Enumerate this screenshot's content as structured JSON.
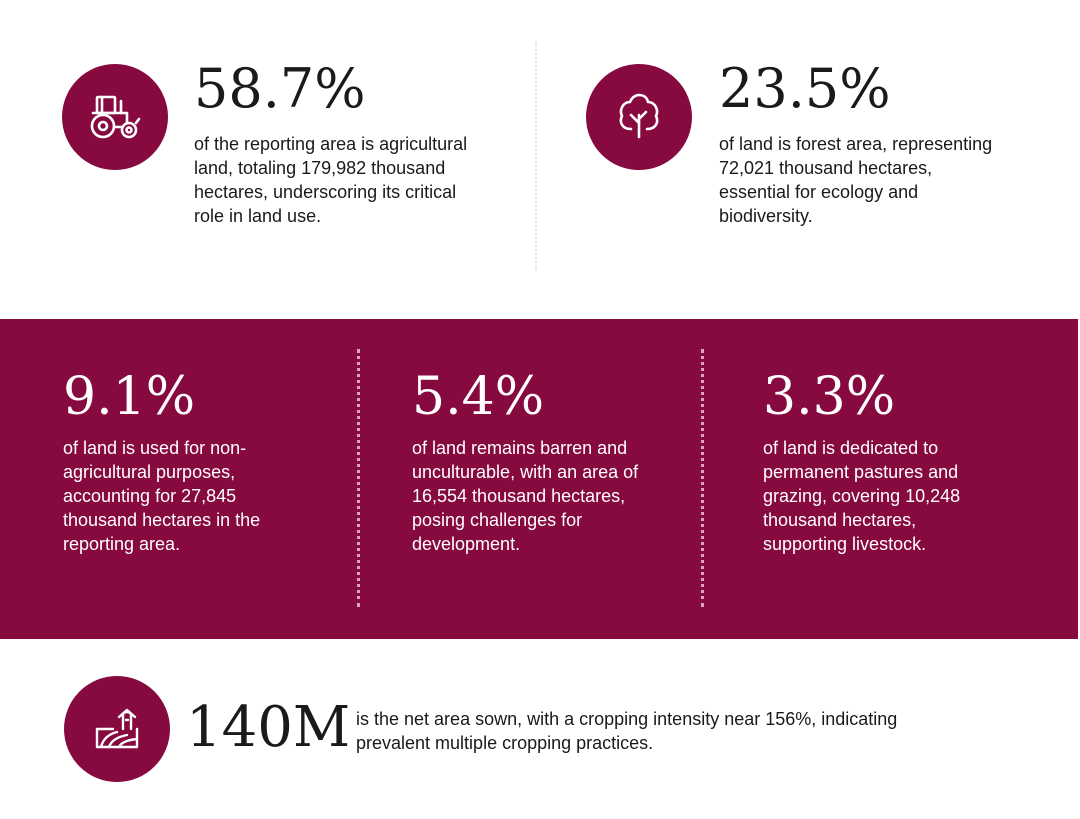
{
  "top_stats": [
    {
      "value": "58.7%",
      "text": "of the reporting area is agricultural land, totaling 179,982 thousand hectares, underscoring its critical role in land use.",
      "icon": "tractor-icon"
    },
    {
      "value": "23.5%",
      "text": "of land is forest area, representing 72,021 thousand hectares, essential for ecology and biodiversity.",
      "icon": "tree-icon"
    }
  ],
  "band_stats": [
    {
      "value": "9.1%",
      "text": "of land is used for non-agricultural purposes, accounting for 27,845 thousand hectares in the reporting area."
    },
    {
      "value": "5.4%",
      "text": "of land remains barren and unculturable, with an area of 16,554 thousand hectares, posing challenges for development."
    },
    {
      "value": "3.3%",
      "text": "of land is dedicated to permanent pastures and grazing, covering 10,248 thousand hectares, supporting livestock."
    }
  ],
  "bottom_stat": {
    "value": "140M",
    "text": "is the net area sown, with a cropping intensity near 156%, indicating prevalent multiple cropping practices.",
    "icon": "farm-field-icon"
  },
  "colors": {
    "accent": "#860a3f",
    "text": "#1a1a1a",
    "band_text": "#ffffff"
  }
}
